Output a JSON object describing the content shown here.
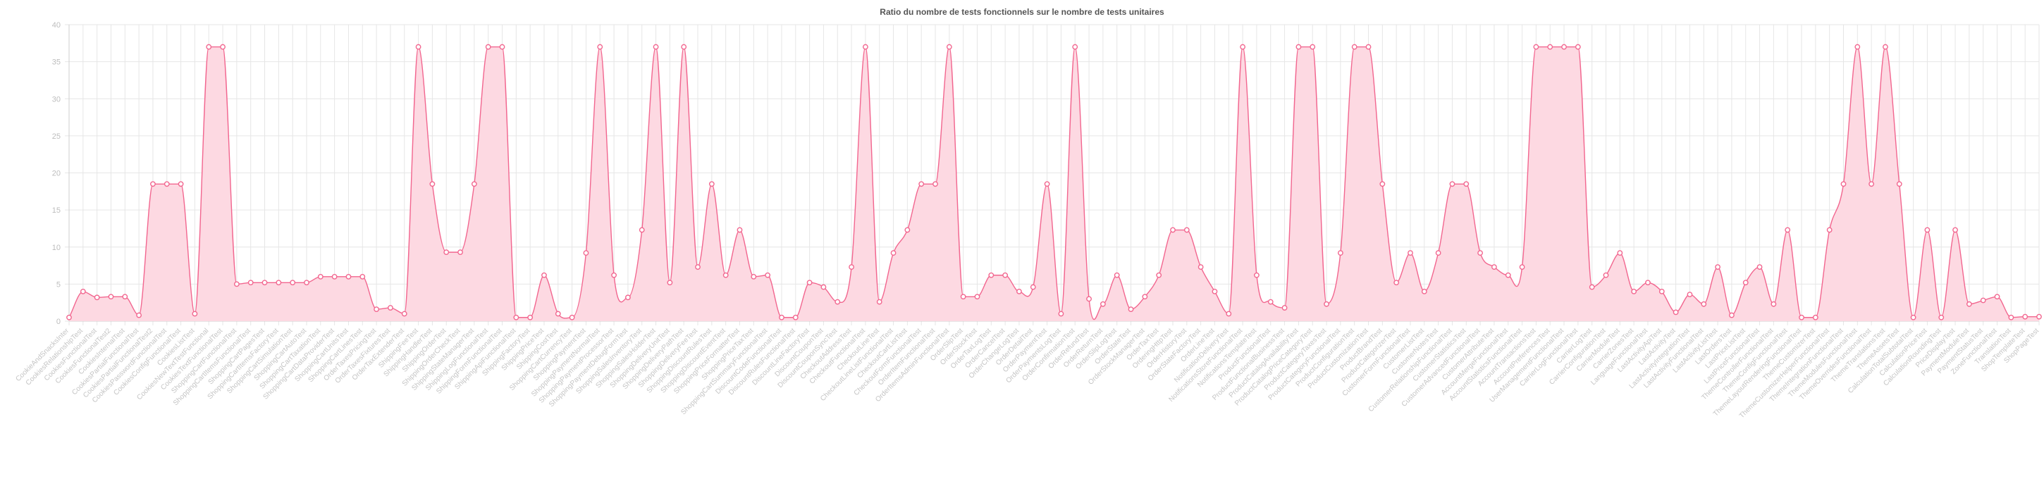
{
  "colors": {
    "line": "#f2668f",
    "fill": "#fdd9e2",
    "point_fill": "#ffffff",
    "grid": "#e6e6e6",
    "axis": "#cfcfcf"
  },
  "chart_data": {
    "type": "area",
    "title": "Ratio du nombre de tests fonctionnels sur le nombre de tests unitaires",
    "xlabel": "",
    "ylabel": "",
    "ylim": [
      0,
      40
    ],
    "yticks": [
      0,
      5,
      10,
      15,
      20,
      25,
      30,
      35,
      40
    ],
    "grid": true,
    "legend": "none",
    "categories": [
      "CookieAndSnacksInter",
      "CookiesRelationshipTest",
      "CookiesFunctionalTest",
      "CookiesFunctionalTest2",
      "CookiesInternalTest",
      "CookiesPartialFunctionalTest",
      "CookiesPartialFunctionalTest2",
      "CookiesPasswordFunctionalTest",
      "CookiesConfigFunctionalTest",
      "CookiesListTest",
      "CookiesNewTextTestFunctional",
      "CookiesTextFunctionalTest",
      "ShoppingCartFunctionalTest",
      "ShoppingCartItemsFunctionalTest",
      "ShoppingCartPagesTest",
      "ShoppingCartItemsFactoryTest",
      "ShoppingCartSimulationTest",
      "ShoppingCartAutoTest",
      "ShoppingCartTaxationTest",
      "ShoppingCartDataProviderTest",
      "ShoppingCartUnitsTest",
      "ShoppingCartLinesTest",
      "OrderTaxesPricingTest",
      "OrderTaxesFixturesTest",
      "OrderTaxExtenderTest",
      "ShippingFeeTest",
      "ShippingHandlerTest",
      "ShippingOrderTest",
      "ShippingOrderCheckTest",
      "ShippingStateManagerTest",
      "ShippingLogFunctionalTest",
      "ShippingFormFunctionalTest",
      "ShippingApiFunctionalTest",
      "ShippingFactoryTest",
      "ShippingPriceTest",
      "ShippingCostTest",
      "ShoppingCartCurrencyTest",
      "ShoppingPaymentTest",
      "ShoppingPaymentNormalTest",
      "ShoppingPaymentProcessorTest",
      "ShoppingPaymentDebugFormTest",
      "ShoppingSalesInventoryTest",
      "ShoppingSalesHolderTest",
      "ShoppingDeliveryUnitTest",
      "ShoppingDeliveryPathTest",
      "ShoppingDeliveryFeeTest",
      "ShoppingDiscountRulesTest",
      "ShoppingDiscountEventTest",
      "ShoppingPriceFormatterTest",
      "ShoppingPriceTaxTest",
      "ShoppingCartSummaryFunctionalTest",
      "DiscountCodeFunctionalTest",
      "DiscountRulesFunctionalTest",
      "DiscountLineFactoryTest",
      "DiscountCouponTest",
      "DiscountCouponSyncTest",
      "CheckoutAddressTest",
      "CheckoutFunctionalTest",
      "CheckoutLineTest",
      "CheckoutLineListFunctionalTest",
      "CheckoutCartListTest",
      "CheckoutFormFunctionalTest",
      "OrderItemFunctionalTest",
      "OrderItemsAdminFunctionalTest",
      "OrderSlipTest",
      "OrderStockTest",
      "OrderTaxLogTest",
      "OrderCancelTest",
      "OrderChangeLogTest",
      "OrderDetailTest",
      "OrderPaymentTest",
      "OrderPaymentsLogTest",
      "OrderConfirmationTest",
      "OrderRefundTest",
      "OrderReturnTest",
      "OrderSlipLogTest",
      "OrderStateTest",
      "OrderStockManagerTest",
      "OrderTaxTest",
      "OrderingHttpTest",
      "OrderHistoryTest",
      "OrderStateFactoryTest",
      "OrderLineTest",
      "NotificationDeliveryTest",
      "NotificationsStoreFunctionalTest",
      "NotificationsTemplateTest",
      "ProductFunctionalTest",
      "ProductFunctionalBusinessTest",
      "ProductCatalogAvailabilityTest",
      "ProductCatalogPriceCategoryTest",
      "ProductCategoryTaxesTest",
      "ProductCategoryFunctionalTest",
      "ProductConfigurationTest",
      "ProductCustomizationTest",
      "ProductBrandTest",
      "ProductCategorizerTest",
      "CustomerFormFunctionalTest",
      "CustomerListTest",
      "CustomerNotesTest",
      "CustomerRelationshipFunctionalTest",
      "CustomerStatisticsTest",
      "CustomerAdvancedFunctionalTest",
      "CustomerAttributeTest",
      "AccountMergeFunctionalTest",
      "AccountStatisticsFunctionalTest",
      "AccountTransactionsTest",
      "AccountPreferencesTest",
      "UserManagementFunctionalTest",
      "CarrierLogFunctionalTest",
      "CarrierLogTest",
      "CarrierConfigurationTest",
      "CarrierModuleTest",
      "CarrierZonesTest",
      "LanguageFunctionalTest",
      "LastActivityApiTest",
      "LastActivityTest",
      "LastActivityIntegrationTest",
      "LastActivityFunctionalTest",
      "LastActivityListTest",
      "LastOrdersTest",
      "LastPriceListTest",
      "LastPriceFunctionalTest",
      "ThemeControllerFunctionalTest",
      "ThemeConfigFunctionalTest",
      "ThemeLayoutRenderingFunctionalTest",
      "ThemeCustomizerTest",
      "ThemeCustomizerHelperFunctionalTest",
      "ThemeIntegrationFunctionalTest",
      "ThemeModulesFunctionalTest",
      "ThemeOverridesFunctionalTest",
      "ThemeTranslationsTest",
      "ThemeAssetsTest",
      "CalculationTotalSubtotalTest",
      "CalculationPriceTest",
      "CalculationRoundingTest",
      "PriceDisplayTest",
      "PaymentModuleTest",
      "PaymentStatusTest",
      "ZoneFunctionalTest",
      "TranslationTest",
      "ShopTemplateTest",
      "ShopPageTest"
    ],
    "values": [
      0.5,
      4.0,
      3.2,
      3.3,
      3.3,
      0.8,
      18.5,
      18.5,
      18.5,
      1.0,
      37.0,
      37.0,
      5.0,
      5.2,
      5.2,
      5.2,
      5.2,
      5.2,
      6.0,
      6.0,
      6.0,
      6.0,
      1.6,
      1.8,
      1.0,
      37.0,
      18.5,
      9.3,
      9.3,
      18.5,
      37.0,
      37.0,
      0.5,
      0.5,
      6.2,
      1.0,
      0.5,
      9.2,
      37.0,
      6.2,
      3.2,
      12.3,
      37.0,
      5.2,
      37.0,
      7.3,
      18.5,
      6.2,
      12.3,
      6.0,
      6.2,
      0.5,
      0.5,
      5.2,
      4.6,
      2.6,
      7.3,
      37.0,
      2.6,
      9.2,
      12.3,
      18.5,
      18.5,
      37.0,
      3.3,
      3.3,
      6.2,
      6.2,
      4.0,
      4.6,
      18.5,
      1.0,
      37.0,
      3.0,
      2.3,
      6.2,
      1.6,
      3.3,
      6.2,
      12.3,
      12.3,
      7.3,
      4.0,
      1.0,
      37.0,
      6.2,
      2.6,
      1.8,
      37.0,
      37.0,
      2.3,
      9.2,
      37.0,
      37.0,
      18.5,
      5.2,
      9.2,
      4.0,
      9.2,
      18.5,
      18.5,
      9.2,
      7.3,
      6.2,
      7.3,
      37.0,
      37.0,
      37.0,
      37.0,
      4.6,
      6.2,
      9.2,
      4.0,
      5.2,
      4.0,
      1.2,
      3.6,
      2.3,
      7.3,
      0.8,
      5.2,
      7.3,
      2.3,
      12.3,
      0.5,
      0.5,
      12.3,
      18.5,
      37.0,
      18.5,
      37.0,
      18.5,
      0.5,
      12.3,
      0.5,
      12.3,
      2.3,
      2.8,
      3.3,
      0.5,
      0.6,
      0.6
    ]
  }
}
